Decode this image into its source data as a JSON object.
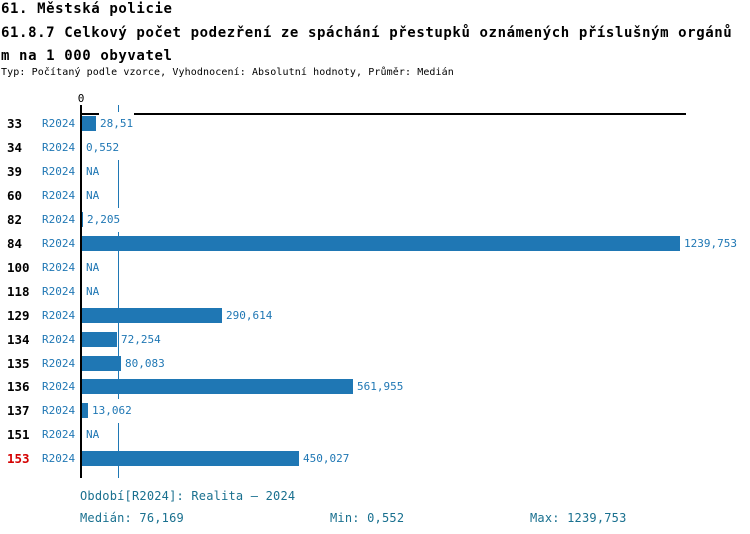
{
  "header": {
    "title_line1": "61. Městská policie",
    "title_line2": "61.8.7 Celkový počet podezření ze spáchání přestupků oznámených příslušným orgánů",
    "title_line3": "m na 1 000 obyvatel",
    "meta": "Typ: Počítaný podle vzorce, Vyhodnocení: Absolutní hodnoty, Průměr: Medián"
  },
  "chart_data": {
    "type": "bar",
    "orientation": "horizontal",
    "title": "61.8.7 Celkový počet podezření ze spáchání přestupků oznámených příslušným orgánům na 1 000 obyvatel",
    "period": "R2024",
    "categories": [
      "33",
      "34",
      "39",
      "60",
      "82",
      "84",
      "100",
      "118",
      "129",
      "134",
      "135",
      "136",
      "137",
      "151",
      "153"
    ],
    "values": [
      28.51,
      0.552,
      null,
      null,
      2.205,
      1239.753,
      null,
      null,
      290.614,
      72.254,
      80.083,
      561.955,
      13.062,
      null,
      450.027
    ],
    "value_labels": [
      "28,51",
      "0,552",
      "NA",
      "NA",
      "2,205",
      "1239,753",
      "NA",
      "NA",
      "290,614",
      "72,254",
      "80,083",
      "561,955",
      "13,062",
      "NA",
      "450,027"
    ],
    "na_label": "NA",
    "zero_tick_label": "0",
    "xlim": [
      0,
      1239.753
    ],
    "median": 76.169,
    "bar_color": "#1f77b4",
    "value_text_color": "#1f77b4",
    "category_text_color": "#000000",
    "highlighted_category": "153",
    "highlight_color": "#d40000",
    "legend_position": "none",
    "grid": false
  },
  "footer": {
    "period_info": "Období[R2024]: Realita – 2024",
    "median_label": "Medián: 76,169",
    "min_label": "Min: 0,552",
    "max_label": "Max: 1239,753"
  }
}
